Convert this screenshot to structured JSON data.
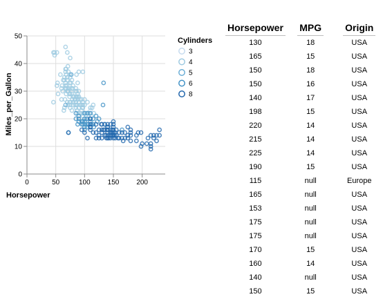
{
  "chart_data": {
    "type": "scatter",
    "xlabel": "Horsepower",
    "ylabel": "Miles_per_Gallon",
    "xlim": [
      0,
      240
    ],
    "ylim": [
      0,
      50
    ],
    "xticks": [
      "0",
      "50",
      "100",
      "150",
      "200"
    ],
    "yticks": [
      "0",
      "10",
      "20",
      "30",
      "40",
      "50"
    ],
    "grid": true,
    "legend": {
      "title": "Cylinders",
      "placement": "right",
      "entries": [
        "3",
        "4",
        "5",
        "6",
        "8"
      ]
    },
    "colors": {
      "3": "#c6dbef",
      "4": "#9ecae1",
      "5": "#6baed6",
      "6": "#4292c6",
      "8": "#2166ac"
    },
    "series": [
      {
        "name": "3",
        "points": [
          [
            90,
            19
          ],
          [
            95,
            22
          ],
          [
            97,
            21
          ],
          [
            110,
            23
          ]
        ]
      },
      {
        "name": "4",
        "points": [
          [
            46,
            26
          ],
          [
            46,
            44
          ],
          [
            48,
            43
          ],
          [
            48,
            44
          ],
          [
            52,
            32
          ],
          [
            52,
            44
          ],
          [
            53,
            33
          ],
          [
            54,
            29
          ],
          [
            58,
            36
          ],
          [
            60,
            27
          ],
          [
            60,
            31
          ],
          [
            61,
            32
          ],
          [
            62,
            30
          ],
          [
            63,
            34
          ],
          [
            64,
            23
          ],
          [
            65,
            24
          ],
          [
            65,
            34
          ],
          [
            65,
            35
          ],
          [
            66,
            27
          ],
          [
            67,
            31
          ],
          [
            67,
            33
          ],
          [
            67,
            32
          ],
          [
            67,
            37
          ],
          [
            67,
            38
          ],
          [
            67,
            46
          ],
          [
            68,
            29
          ],
          [
            68,
            31
          ],
          [
            68,
            36
          ],
          [
            68,
            38
          ],
          [
            69,
            32
          ],
          [
            70,
            26
          ],
          [
            70,
            30
          ],
          [
            70,
            34
          ],
          [
            70,
            35
          ],
          [
            70,
            44
          ],
          [
            71,
            25
          ],
          [
            71,
            30
          ],
          [
            71,
            31
          ],
          [
            71,
            39
          ],
          [
            72,
            30
          ],
          [
            72,
            37
          ],
          [
            74,
            26
          ],
          [
            74,
            28
          ],
          [
            74,
            29
          ],
          [
            74,
            33
          ],
          [
            74,
            36
          ],
          [
            75,
            24
          ],
          [
            75,
            25
          ],
          [
            75,
            29
          ],
          [
            75,
            31
          ],
          [
            75,
            35
          ],
          [
            75,
            42
          ],
          [
            76,
            26
          ],
          [
            76,
            33
          ],
          [
            76,
            36
          ],
          [
            78,
            23
          ],
          [
            78,
            29
          ],
          [
            78,
            31
          ],
          [
            78,
            34
          ],
          [
            79,
            27
          ],
          [
            79,
            31
          ],
          [
            80,
            25
          ],
          [
            80,
            26
          ],
          [
            80,
            28
          ],
          [
            80,
            32
          ],
          [
            82,
            28
          ],
          [
            83,
            27
          ],
          [
            84,
            25
          ],
          [
            84,
            27
          ],
          [
            84,
            30
          ],
          [
            85,
            24
          ],
          [
            85,
            26
          ],
          [
            85,
            28
          ],
          [
            85,
            31
          ],
          [
            86,
            25
          ],
          [
            86,
            28
          ],
          [
            86,
            30
          ],
          [
            86,
            36
          ],
          [
            87,
            23
          ],
          [
            87,
            25
          ],
          [
            88,
            22
          ],
          [
            88,
            27
          ],
          [
            88,
            28
          ],
          [
            88,
            29
          ],
          [
            88,
            33
          ],
          [
            90,
            24
          ],
          [
            90,
            26
          ],
          [
            90,
            28
          ],
          [
            90,
            30
          ],
          [
            90,
            37
          ],
          [
            92,
            22
          ],
          [
            92,
            25
          ],
          [
            92,
            27
          ],
          [
            95,
            23
          ],
          [
            95,
            25
          ],
          [
            95,
            27
          ],
          [
            96,
            24
          ],
          [
            97,
            21
          ],
          [
            97,
            22
          ],
          [
            97,
            24
          ],
          [
            97,
            25
          ],
          [
            97,
            26
          ],
          [
            97,
            37
          ],
          [
            100,
            25
          ],
          [
            100,
            27
          ],
          [
            102,
            22
          ],
          [
            105,
            22
          ],
          [
            105,
            26
          ],
          [
            108,
            22
          ],
          [
            110,
            24
          ],
          [
            112,
            21
          ],
          [
            113,
            24
          ],
          [
            115,
            25
          ],
          [
            116,
            22
          ]
        ]
      },
      {
        "name": "5",
        "points": [
          [
            67,
            25
          ],
          [
            77,
            36
          ],
          [
            103,
            20
          ]
        ]
      },
      {
        "name": "6",
        "points": [
          [
            72,
            15
          ],
          [
            85,
            20
          ],
          [
            85,
            22
          ],
          [
            88,
            18
          ],
          [
            90,
            19
          ],
          [
            90,
            20
          ],
          [
            90,
            21
          ],
          [
            95,
            18
          ],
          [
            95,
            19
          ],
          [
            97,
            18
          ],
          [
            97,
            19
          ],
          [
            100,
            16
          ],
          [
            100,
            17
          ],
          [
            100,
            18
          ],
          [
            100,
            19
          ],
          [
            100,
            20
          ],
          [
            100,
            22
          ],
          [
            105,
            17
          ],
          [
            105,
            18
          ],
          [
            105,
            20
          ],
          [
            105,
            22
          ],
          [
            107,
            18
          ],
          [
            110,
            17
          ],
          [
            110,
            19
          ],
          [
            110,
            20
          ],
          [
            110,
            22
          ],
          [
            112,
            18
          ],
          [
            115,
            18
          ],
          [
            115,
            20
          ],
          [
            116,
            17
          ],
          [
            120,
            21
          ],
          [
            122,
            19
          ],
          [
            125,
            20
          ],
          [
            132,
            25
          ],
          [
            133,
            33
          ],
          [
            135,
            18
          ],
          [
            140,
            17
          ],
          [
            145,
            15
          ],
          [
            165,
            16
          ]
        ]
      },
      {
        "name": "8",
        "points": [
          [
            72,
            15
          ],
          [
            95,
            16
          ],
          [
            100,
            15
          ],
          [
            105,
            13
          ],
          [
            110,
            16
          ],
          [
            110,
            17
          ],
          [
            110,
            18
          ],
          [
            110,
            20
          ],
          [
            115,
            15
          ],
          [
            120,
            13
          ],
          [
            120,
            15
          ],
          [
            120,
            18
          ],
          [
            125,
            13
          ],
          [
            125,
            14
          ],
          [
            125,
            16
          ],
          [
            129,
            18
          ],
          [
            130,
            13
          ],
          [
            130,
            15
          ],
          [
            130,
            16
          ],
          [
            130,
            18
          ],
          [
            133,
            16
          ],
          [
            135,
            14
          ],
          [
            135,
            16
          ],
          [
            135,
            18
          ],
          [
            137,
            14
          ],
          [
            138,
            13
          ],
          [
            139,
            16
          ],
          [
            140,
            13
          ],
          [
            140,
            14
          ],
          [
            140,
            15
          ],
          [
            140,
            16
          ],
          [
            140,
            17
          ],
          [
            140,
            18
          ],
          [
            142,
            13
          ],
          [
            145,
            13
          ],
          [
            145,
            14
          ],
          [
            145,
            15
          ],
          [
            145,
            16
          ],
          [
            145,
            18
          ],
          [
            148,
            14
          ],
          [
            148,
            15
          ],
          [
            148,
            16
          ],
          [
            150,
            13
          ],
          [
            150,
            14
          ],
          [
            150,
            15
          ],
          [
            150,
            16
          ],
          [
            150,
            17
          ],
          [
            150,
            18
          ],
          [
            150,
            19
          ],
          [
            152,
            14
          ],
          [
            153,
            13
          ],
          [
            153,
            15
          ],
          [
            155,
            14
          ],
          [
            155,
            16
          ],
          [
            158,
            13
          ],
          [
            160,
            13
          ],
          [
            160,
            15
          ],
          [
            165,
            13
          ],
          [
            165,
            15
          ],
          [
            167,
            12
          ],
          [
            170,
            13
          ],
          [
            170,
            15
          ],
          [
            175,
            13
          ],
          [
            175,
            14
          ],
          [
            175,
            17
          ],
          [
            180,
            12
          ],
          [
            180,
            14
          ],
          [
            180,
            15
          ],
          [
            180,
            16
          ],
          [
            190,
            12
          ],
          [
            190,
            14
          ],
          [
            193,
            15
          ],
          [
            198,
            10
          ],
          [
            198,
            15
          ],
          [
            200,
            11
          ],
          [
            208,
            11
          ],
          [
            210,
            13
          ],
          [
            215,
            9
          ],
          [
            215,
            10
          ],
          [
            215,
            11
          ],
          [
            215,
            14
          ],
          [
            220,
            13
          ],
          [
            220,
            14
          ],
          [
            225,
            12
          ],
          [
            225,
            14
          ],
          [
            230,
            14
          ],
          [
            230,
            16
          ]
        ]
      }
    ]
  },
  "table": {
    "headers": {
      "hp": "Horsepower",
      "mpg": "MPG",
      "origin": "Origin"
    },
    "rows": [
      {
        "hp": "130",
        "mpg": "18",
        "origin": "USA"
      },
      {
        "hp": "165",
        "mpg": "15",
        "origin": "USA"
      },
      {
        "hp": "150",
        "mpg": "18",
        "origin": "USA"
      },
      {
        "hp": "150",
        "mpg": "16",
        "origin": "USA"
      },
      {
        "hp": "140",
        "mpg": "17",
        "origin": "USA"
      },
      {
        "hp": "198",
        "mpg": "15",
        "origin": "USA"
      },
      {
        "hp": "220",
        "mpg": "14",
        "origin": "USA"
      },
      {
        "hp": "215",
        "mpg": "14",
        "origin": "USA"
      },
      {
        "hp": "225",
        "mpg": "14",
        "origin": "USA"
      },
      {
        "hp": "190",
        "mpg": "15",
        "origin": "USA"
      },
      {
        "hp": "115",
        "mpg": "null",
        "origin": "Europe"
      },
      {
        "hp": "165",
        "mpg": "null",
        "origin": "USA"
      },
      {
        "hp": "153",
        "mpg": "null",
        "origin": "USA"
      },
      {
        "hp": "175",
        "mpg": "null",
        "origin": "USA"
      },
      {
        "hp": "175",
        "mpg": "null",
        "origin": "USA"
      },
      {
        "hp": "170",
        "mpg": "15",
        "origin": "USA"
      },
      {
        "hp": "160",
        "mpg": "14",
        "origin": "USA"
      },
      {
        "hp": "140",
        "mpg": "null",
        "origin": "USA"
      },
      {
        "hp": "150",
        "mpg": "15",
        "origin": "USA"
      }
    ]
  }
}
